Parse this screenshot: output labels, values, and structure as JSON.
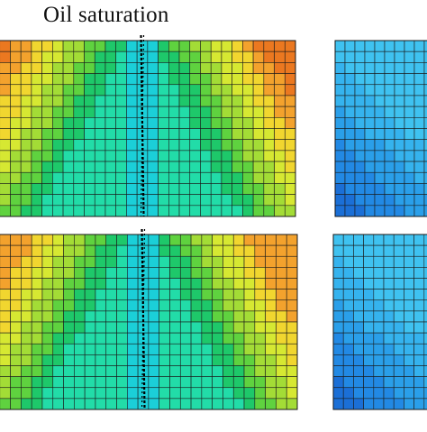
{
  "title": "Oil saturation",
  "colors": {
    "grid_line": "#1a1a1a",
    "fracture": "#000000",
    "oil_palette": [
      "#0f7fd8",
      "#19a6e8",
      "#1bcfd8",
      "#22dca8",
      "#1ec86a",
      "#5fd23f",
      "#a3dc36",
      "#d6e832",
      "#f1d62f",
      "#f3a22d",
      "#eb7820"
    ],
    "water_palette": [
      "#1b6fd6",
      "#2289e4",
      "#2a9fe9",
      "#35b3ee",
      "#3fc2f0"
    ]
  },
  "panels": [
    {
      "id": "oil-top",
      "kind": "oil",
      "cols": 29,
      "rows": 16,
      "color_max": 10
    },
    {
      "id": "oil-bottom",
      "kind": "oil",
      "cols": 29,
      "rows": 16,
      "color_max": 9
    },
    {
      "id": "water-top",
      "kind": "water",
      "cols": 10,
      "rows": 16
    },
    {
      "id": "water-bottom",
      "kind": "water",
      "cols": 10,
      "rows": 16
    }
  ]
}
